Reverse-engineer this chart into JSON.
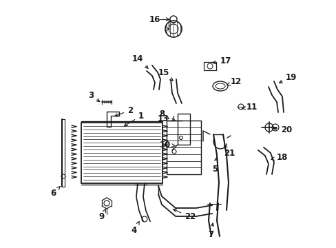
{
  "bg_color": "#ffffff",
  "line_color": "#1a1a1a",
  "fig_width": 4.89,
  "fig_height": 3.6,
  "dpi": 100,
  "label_fontsize": 8.5,
  "label_fontsize_sm": 7.5
}
